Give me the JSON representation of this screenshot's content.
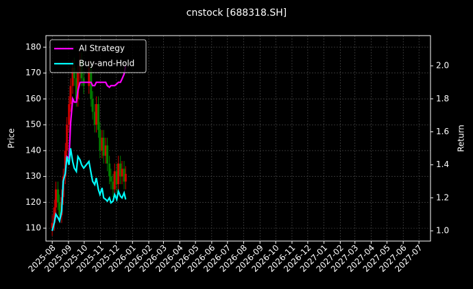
{
  "chart_data": {
    "type": "candlestick",
    "title": "cnstock [688318.SH]",
    "ylabel": "Price",
    "y2label": "Return",
    "x": [
      "2025-08-01",
      "2025-08-05",
      "2025-08-08",
      "2025-08-12",
      "2025-08-15",
      "2025-08-19",
      "2025-08-22",
      "2025-08-26",
      "2025-08-29",
      "2025-09-02",
      "2025-09-05",
      "2025-09-09",
      "2025-09-12",
      "2025-09-16",
      "2025-09-19",
      "2025-09-23",
      "2025-09-26",
      "2025-09-30",
      "2025-10-10",
      "2025-10-14",
      "2025-10-17",
      "2025-10-21",
      "2025-10-24",
      "2025-10-28",
      "2025-10-31",
      "2025-11-04",
      "2025-11-07",
      "2025-11-11",
      "2025-11-14",
      "2025-11-18",
      "2025-11-21",
      "2025-11-25",
      "2025-11-28",
      "2025-12-02",
      "2025-12-05",
      "2025-12-09",
      "2025-12-12",
      "2025-12-16",
      "2025-12-19"
    ],
    "open": [
      110,
      112,
      118,
      125,
      120,
      115,
      122,
      130,
      140,
      150,
      158,
      165,
      172,
      168,
      160,
      170,
      175,
      168,
      165,
      172,
      160,
      155,
      150,
      158,
      148,
      140,
      145,
      138,
      142,
      135,
      130,
      128,
      125,
      132,
      127,
      135,
      130,
      133,
      128
    ],
    "high": [
      115,
      121,
      128,
      128,
      123,
      125,
      133,
      143,
      153,
      161,
      168,
      175,
      176,
      171,
      173,
      178,
      178,
      171,
      175,
      175,
      163,
      158,
      161,
      161,
      151,
      148,
      148,
      145,
      145,
      138,
      133,
      131,
      135,
      135,
      138,
      138,
      136,
      136,
      134
    ],
    "low": [
      107,
      109,
      115,
      117,
      112,
      112,
      119,
      127,
      137,
      147,
      155,
      162,
      165,
      157,
      157,
      167,
      165,
      162,
      162,
      157,
      152,
      147,
      147,
      145,
      137,
      137,
      135,
      135,
      132,
      127,
      125,
      122,
      122,
      124,
      124,
      127,
      127,
      125,
      125
    ],
    "close": [
      112,
      118,
      125,
      120,
      115,
      122,
      130,
      140,
      150,
      158,
      165,
      172,
      168,
      160,
      170,
      175,
      168,
      165,
      172,
      160,
      155,
      150,
      158,
      148,
      140,
      145,
      138,
      142,
      135,
      130,
      128,
      125,
      132,
      127,
      135,
      130,
      133,
      128,
      131
    ],
    "up_color": "#d00000",
    "down_color": "#008000",
    "series": [
      {
        "name": "AI Strategy",
        "color": "#ff00ff",
        "axis": "y2",
        "values": [
          1.0,
          1.05,
          1.1,
          1.08,
          1.06,
          1.12,
          1.3,
          1.35,
          1.45,
          1.44,
          1.65,
          1.8,
          1.78,
          1.78,
          1.85,
          1.9,
          1.9,
          1.9,
          1.9,
          1.9,
          1.88,
          1.88,
          1.9,
          1.9,
          1.9,
          1.9,
          1.9,
          1.9,
          1.88,
          1.87,
          1.88,
          1.88,
          1.88,
          1.89,
          1.9,
          1.9,
          1.92,
          1.95,
          2.0
        ]
      },
      {
        "name": "Buy-and-Hold",
        "color": "#00ffff",
        "axis": "y2",
        "values": [
          1.0,
          1.05,
          1.1,
          1.08,
          1.06,
          1.12,
          1.3,
          1.35,
          1.45,
          1.4,
          1.5,
          1.42,
          1.38,
          1.36,
          1.45,
          1.43,
          1.4,
          1.38,
          1.42,
          1.35,
          1.3,
          1.28,
          1.32,
          1.25,
          1.22,
          1.26,
          1.2,
          1.19,
          1.18,
          1.2,
          1.17,
          1.18,
          1.22,
          1.19,
          1.24,
          1.21,
          1.2,
          1.23,
          1.19
        ]
      }
    ],
    "xlim": [
      "2025-07-20",
      "2027-07-23"
    ],
    "xticks": [
      {
        "value": "2025-08-01",
        "label": "2025-08"
      },
      {
        "value": "2025-09-01",
        "label": "2025-09"
      },
      {
        "value": "2025-10-01",
        "label": "2025-10"
      },
      {
        "value": "2025-11-01",
        "label": "2025-11"
      },
      {
        "value": "2025-12-01",
        "label": "2025-12"
      },
      {
        "value": "2026-01-01",
        "label": "2026-01"
      },
      {
        "value": "2026-02-01",
        "label": "2026-02"
      },
      {
        "value": "2026-03-01",
        "label": "2026-03"
      },
      {
        "value": "2026-04-01",
        "label": "2026-04"
      },
      {
        "value": "2026-05-01",
        "label": "2026-05"
      },
      {
        "value": "2026-06-01",
        "label": "2026-06"
      },
      {
        "value": "2026-07-01",
        "label": "2026-07"
      },
      {
        "value": "2026-08-01",
        "label": "2026-08"
      },
      {
        "value": "2026-09-01",
        "label": "2026-09"
      },
      {
        "value": "2026-10-01",
        "label": "2026-10"
      },
      {
        "value": "2026-11-01",
        "label": "2026-11"
      },
      {
        "value": "2026-12-01",
        "label": "2026-12"
      },
      {
        "value": "2027-01-01",
        "label": "2027-01"
      },
      {
        "value": "2027-02-01",
        "label": "2027-02"
      },
      {
        "value": "2027-03-01",
        "label": "2027-03"
      },
      {
        "value": "2027-04-01",
        "label": "2027-04"
      },
      {
        "value": "2027-05-01",
        "label": "2027-05"
      },
      {
        "value": "2027-06-01",
        "label": "2027-06"
      },
      {
        "value": "2027-07-01",
        "label": "2027-07"
      }
    ],
    "ylim": [
      105,
      184.5
    ],
    "yticks": [
      110,
      120,
      130,
      140,
      150,
      160,
      170,
      180
    ],
    "y2lim": [
      0.938,
      2.183
    ],
    "y2ticks": [
      {
        "value": 1.0,
        "label": "1.0"
      },
      1.2,
      1.4,
      1.6,
      1.8,
      {
        "value": 2.0,
        "label": "2.0"
      }
    ],
    "grid": true,
    "legend": "upper left"
  }
}
